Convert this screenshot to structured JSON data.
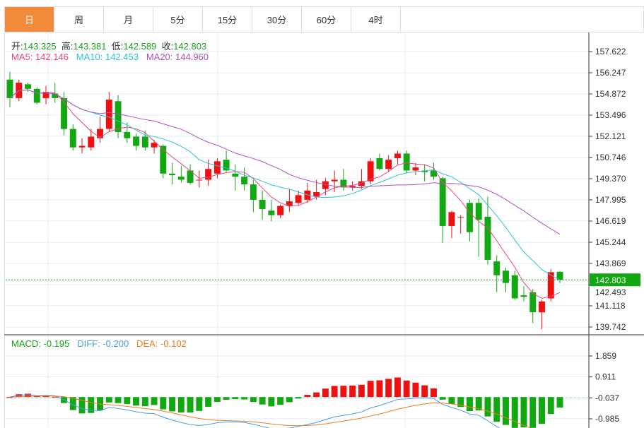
{
  "tabs": [
    "日",
    "周",
    "月",
    "5分",
    "15分",
    "30分",
    "60分",
    "4时"
  ],
  "active_tab": 0,
  "ohlc": {
    "open_label": "开:",
    "open": "143.325",
    "high_label": "高:",
    "high": "143.381",
    "low_label": "低:",
    "low": "142.589",
    "close_label": "收:",
    "close": "142.803"
  },
  "ma": {
    "ma5": "MA5: 142.146",
    "ma10": "MA10: 142.453",
    "ma20": "MA20: 144.960"
  },
  "macd_info": {
    "macd": "MACD: -0.195",
    "diff": "DIFF: -0.200",
    "dea": "DEA: -0.102"
  },
  "colors": {
    "up": "#ee1111",
    "down": "#11a811",
    "ma5": "#e8467c",
    "ma10": "#2ec3d6",
    "ma20": "#b04fc4",
    "diff": "#4a9be8",
    "dea": "#f07c1e",
    "accent": "#f28a3c"
  },
  "chart_data": {
    "type": "candlestick",
    "price_ticks": [
      "157.622",
      "156.247",
      "154.872",
      "153.496",
      "152.121",
      "150.746",
      "149.370",
      "147.995",
      "146.619",
      "145.244",
      "143.869",
      "142.493",
      "141.118",
      "139.742"
    ],
    "price_range": [
      139.742,
      157.622
    ],
    "last_price": "142.803",
    "macd_ticks": [
      "1.859",
      "0.911",
      "-0.037",
      "-0.985"
    ],
    "macd_range": [
      -0.985,
      1.859
    ],
    "candles": [
      [
        155.8,
        156.3,
        154.0,
        154.6
      ],
      [
        154.6,
        155.8,
        154.4,
        155.6
      ],
      [
        155.5,
        155.6,
        155.0,
        155.2
      ],
      [
        155.2,
        155.3,
        154.2,
        154.3
      ],
      [
        154.6,
        155.4,
        154.2,
        155.0
      ],
      [
        154.9,
        155.6,
        154.3,
        154.6
      ],
      [
        154.6,
        155.0,
        152.2,
        152.6
      ],
      [
        152.6,
        152.9,
        151.2,
        151.4
      ],
      [
        151.4,
        152.0,
        151.0,
        151.5
      ],
      [
        151.4,
        152.6,
        151.2,
        152.1
      ],
      [
        152.0,
        153.4,
        151.7,
        152.6
      ],
      [
        152.6,
        155.0,
        152.4,
        154.5
      ],
      [
        154.4,
        154.8,
        152.0,
        152.4
      ],
      [
        152.4,
        153.0,
        151.7,
        152.0
      ],
      [
        152.1,
        152.3,
        151.2,
        151.5
      ],
      [
        152.1,
        152.5,
        151.2,
        151.4
      ],
      [
        151.4,
        151.9,
        151.0,
        151.7
      ],
      [
        151.5,
        151.6,
        149.4,
        149.7
      ],
      [
        149.7,
        150.4,
        149.0,
        149.6
      ],
      [
        149.5,
        150.2,
        149.1,
        149.3
      ],
      [
        149.9,
        150.3,
        149.0,
        149.1
      ],
      [
        149.3,
        149.9,
        148.8,
        149.3
      ],
      [
        149.3,
        150.6,
        148.9,
        150.0
      ],
      [
        149.7,
        150.7,
        149.4,
        150.5
      ],
      [
        150.6,
        151.2,
        149.8,
        149.9
      ],
      [
        149.7,
        150.3,
        148.6,
        149.5
      ],
      [
        149.5,
        150.1,
        148.6,
        149.0
      ],
      [
        149.0,
        149.3,
        147.2,
        148.0
      ],
      [
        148.0,
        148.6,
        146.7,
        147.4
      ],
      [
        147.3,
        148.0,
        146.6,
        147.0
      ],
      [
        147.0,
        147.7,
        146.8,
        147.6
      ],
      [
        147.6,
        148.7,
        147.2,
        147.9
      ],
      [
        147.8,
        148.6,
        147.6,
        148.3
      ],
      [
        148.0,
        149.1,
        147.8,
        148.6
      ],
      [
        148.2,
        149.3,
        148.0,
        148.5
      ],
      [
        148.7,
        149.4,
        148.3,
        149.2
      ],
      [
        149.2,
        149.9,
        148.5,
        149.3
      ],
      [
        149.3,
        150.0,
        148.6,
        148.8
      ],
      [
        148.8,
        149.2,
        148.6,
        148.9
      ],
      [
        148.9,
        150.0,
        148.7,
        149.2
      ],
      [
        149.2,
        150.7,
        149.0,
        150.5
      ],
      [
        150.7,
        151.0,
        149.9,
        150.0
      ],
      [
        150.0,
        150.9,
        149.8,
        150.6
      ],
      [
        150.7,
        151.2,
        150.3,
        151.0
      ],
      [
        151.0,
        151.2,
        149.7,
        149.9
      ],
      [
        149.9,
        150.4,
        149.6,
        150.1
      ],
      [
        149.9,
        150.3,
        149.2,
        149.8
      ],
      [
        149.9,
        150.4,
        149.3,
        149.5
      ],
      [
        149.4,
        149.5,
        145.2,
        146.3
      ],
      [
        146.3,
        147.3,
        145.5,
        147.2
      ],
      [
        146.9,
        147.0,
        145.8,
        146.9
      ],
      [
        147.8,
        148.0,
        145.3,
        145.9
      ],
      [
        147.8,
        148.1,
        144.3,
        146.7
      ],
      [
        146.9,
        148.2,
        143.8,
        144.1
      ],
      [
        144.0,
        144.4,
        142.0,
        143.1
      ],
      [
        143.4,
        143.6,
        142.0,
        142.6
      ],
      [
        143.1,
        143.4,
        141.5,
        141.6
      ],
      [
        141.8,
        142.4,
        141.4,
        141.7
      ],
      [
        142.0,
        142.2,
        140.0,
        140.7
      ],
      [
        140.7,
        141.5,
        139.6,
        141.4
      ],
      [
        141.6,
        143.5,
        141.4,
        143.3
      ],
      [
        143.325,
        143.381,
        142.589,
        142.803
      ]
    ]
  }
}
